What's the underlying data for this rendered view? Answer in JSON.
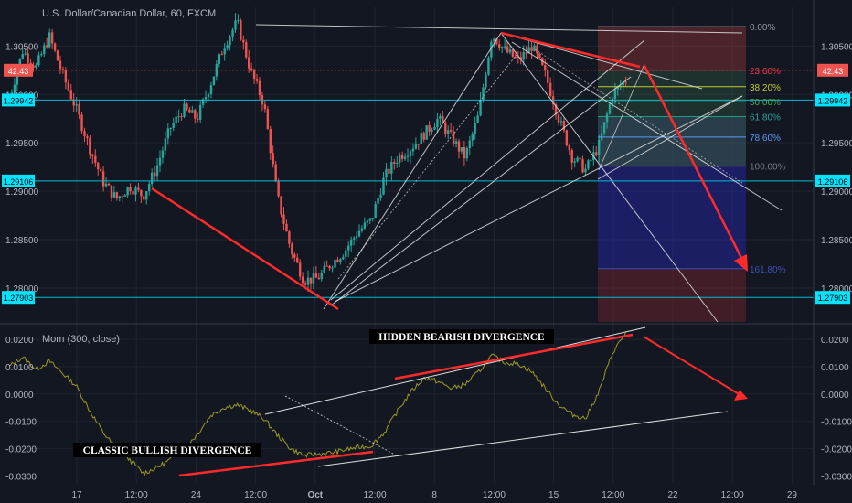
{
  "header": {
    "symbol_title": "U.S. Dollar/Canadian Dollar, 60, FXCM",
    "indicator_title": "Mom (300, close)"
  },
  "colors": {
    "background": "#131722",
    "candle_up": "#26a69a",
    "candle_down": "#ef5350",
    "momentum_line": "#9a9a20",
    "level_line": "#00bcd4",
    "annotation_red": "#ff2a2a",
    "trend_white": "#e0e0e0",
    "axis_text": "#b2b5be",
    "highlight_badge": "#00e5ff",
    "price_badge": "#ef5350"
  },
  "annotations": {
    "hidden_bearish": "HIDDEN BEARISH DIVERGENCE",
    "classic_bullish": "CLASSIC BULLISH DIVERGENCE"
  },
  "chart_data": [
    {
      "type": "candlestick",
      "title": "U.S. Dollar/Canadian Dollar, 60, FXCM",
      "x_ticks": [
        "17",
        "12:00",
        "24",
        "12:00",
        "Oct",
        "12:00",
        "8",
        "12:00",
        "15",
        "12:00",
        "22",
        "12:00",
        "29"
      ],
      "y_ticks": [
        "1.30500",
        "1.30000",
        "1.29500",
        "1.29000",
        "1.28500",
        "1.28000"
      ],
      "ylim": [
        1.2765,
        1.309
      ],
      "price_path": [
        [
          0,
          1.2995
        ],
        [
          1,
          1.3045
        ],
        [
          2,
          1.3028
        ],
        [
          3,
          1.306
        ],
        [
          4,
          1.302
        ],
        [
          5,
          1.2985
        ],
        [
          6,
          1.2945
        ],
        [
          7,
          1.291
        ],
        [
          8,
          1.2892
        ],
        [
          9,
          1.2905
        ],
        [
          10,
          1.2895
        ],
        [
          11,
          1.2925
        ],
        [
          12,
          1.2965
        ],
        [
          13,
          1.2985
        ],
        [
          14,
          1.2975
        ],
        [
          15,
          1.301
        ],
        [
          16,
          1.305
        ],
        [
          17,
          1.3075
        ],
        [
          18,
          1.3025
        ],
        [
          19,
          1.299
        ],
        [
          20,
          1.2895
        ],
        [
          21,
          1.284
        ],
        [
          22,
          1.2808
        ],
        [
          23,
          1.281
        ],
        [
          24,
          1.2825
        ],
        [
          25,
          1.2838
        ],
        [
          26,
          1.2858
        ],
        [
          27,
          1.287
        ],
        [
          28,
          1.2915
        ],
        [
          29,
          1.2935
        ],
        [
          30,
          1.2945
        ],
        [
          31,
          1.296
        ],
        [
          32,
          1.2975
        ],
        [
          33,
          1.2955
        ],
        [
          34,
          1.2935
        ],
        [
          35,
          1.2978
        ],
        [
          36,
          1.3062
        ],
        [
          37,
          1.3045
        ],
        [
          38,
          1.3035
        ],
        [
          39,
          1.305
        ],
        [
          40,
          1.302
        ],
        [
          41,
          1.2975
        ],
        [
          42,
          1.2935
        ],
        [
          43,
          1.2922
        ],
        [
          44,
          1.2948
        ],
        [
          45,
          1.3
        ],
        [
          46,
          1.3015
        ]
      ],
      "levels": [
        {
          "label": "1.29942",
          "value": 1.29942
        },
        {
          "label": "1.29106",
          "value": 1.29106
        },
        {
          "label": "1.27903",
          "value": 1.27903
        }
      ],
      "current_price_label": "42:43",
      "fibonacci": [
        {
          "label": "0.00%",
          "value": 1.307,
          "color": "#9598a1"
        },
        {
          "label": "23.60%",
          "value": 1.3025,
          "color": "#f23645"
        },
        {
          "label": "38.20%",
          "value": 1.3008,
          "color": "#c0ca33"
        },
        {
          "label": "50.00%",
          "value": 1.29925,
          "color": "#4caf50"
        },
        {
          "label": "61.80%",
          "value": 1.2977,
          "color": "#26a69a"
        },
        {
          "label": "78.60%",
          "value": 1.2956,
          "color": "#5b9cf6"
        },
        {
          "label": "100.00%",
          "value": 1.2926,
          "color": "#787b86"
        },
        {
          "label": "161.80%",
          "value": 1.282,
          "color": "#3f51b5"
        }
      ]
    },
    {
      "type": "line",
      "title": "Mom (300, close)",
      "y_ticks": [
        "0.0200",
        "0.0100",
        "0.0000",
        "-0.0100",
        "-0.0200",
        "-0.0300"
      ],
      "ylim": [
        -0.0325,
        0.025
      ],
      "series": [
        {
          "values": [
            [
              0,
              0.01
            ],
            [
              1,
              0.0135
            ],
            [
              2,
              0.009
            ],
            [
              3,
              0.012
            ],
            [
              4,
              0.0075
            ],
            [
              5,
              0.003
            ],
            [
              6,
              -0.006
            ],
            [
              7,
              -0.014
            ],
            [
              8,
              -0.02
            ],
            [
              9,
              -0.024
            ],
            [
              10,
              -0.029
            ],
            [
              11,
              -0.027
            ],
            [
              12,
              -0.024
            ],
            [
              13,
              -0.02
            ],
            [
              14,
              -0.015
            ],
            [
              15,
              -0.008
            ],
            [
              16,
              -0.005
            ],
            [
              17,
              -0.004
            ],
            [
              18,
              -0.006
            ],
            [
              19,
              -0.009
            ],
            [
              20,
              -0.015
            ],
            [
              21,
              -0.02
            ],
            [
              22,
              -0.0225
            ],
            [
              23,
              -0.022
            ],
            [
              24,
              -0.0215
            ],
            [
              25,
              -0.0205
            ],
            [
              26,
              -0.0195
            ],
            [
              27,
              -0.019
            ],
            [
              28,
              -0.014
            ],
            [
              29,
              -0.006
            ],
            [
              30,
              0.001
            ],
            [
              31,
              0.006
            ],
            [
              32,
              0.0045
            ],
            [
              33,
              0.002
            ],
            [
              34,
              0.0035
            ],
            [
              35,
              0.008
            ],
            [
              36,
              0.014
            ],
            [
              37,
              0.0115
            ],
            [
              38,
              0.011
            ],
            [
              39,
              0.008
            ],
            [
              40,
              0.002
            ],
            [
              41,
              -0.004
            ],
            [
              42,
              -0.0075
            ],
            [
              43,
              -0.009
            ],
            [
              44,
              0.001
            ],
            [
              45,
              0.015
            ],
            [
              46,
              0.0225
            ]
          ]
        }
      ]
    }
  ]
}
